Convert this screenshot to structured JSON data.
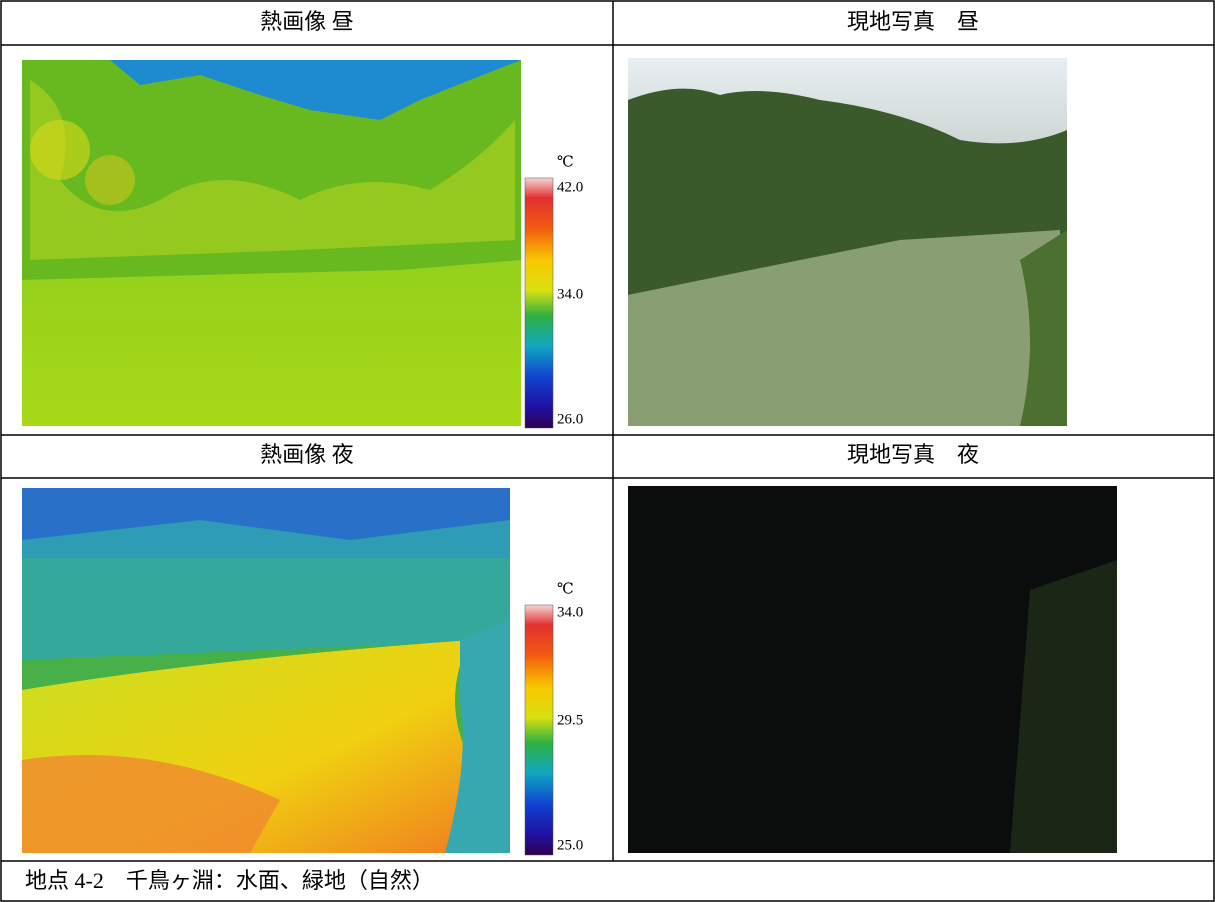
{
  "sections": [
    {
      "thermal": {
        "title": "熱画像 昼",
        "scale": {
          "unit": "℃",
          "max": "42.0",
          "mid": "34.0",
          "min": "26.0"
        }
      },
      "photo": {
        "title": "現地写真　昼"
      }
    },
    {
      "thermal": {
        "title": "熱画像 夜",
        "scale": {
          "unit": "℃",
          "max": "34.0",
          "mid": "29.5",
          "min": "25.0"
        }
      },
      "photo": {
        "title": "現地写真　夜"
      }
    }
  ],
  "caption": "地点 4-2　千鳥ヶ淵：水面、緑地（自然）"
}
